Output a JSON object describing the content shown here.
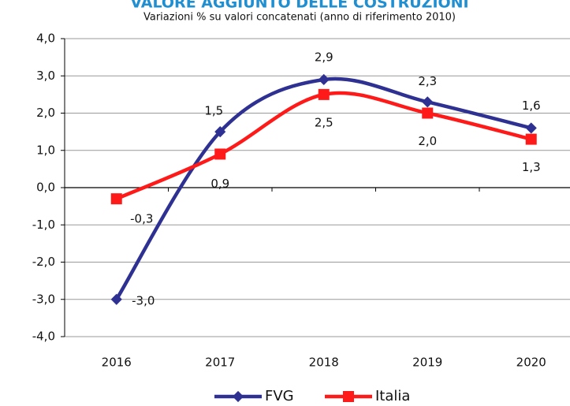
{
  "chart_data": {
    "type": "line",
    "title": "VALORE AGGIUNTO DELLE COSTRUZIONI",
    "subtitle": "Variazioni % su valori concatenati (anno di riferimento 2010)",
    "categories": [
      "2016",
      "2017",
      "2018",
      "2019",
      "2020"
    ],
    "series": [
      {
        "name": "FVG",
        "color": "#2e3192",
        "values": [
          -3.0,
          1.5,
          2.9,
          2.3,
          1.6
        ],
        "value_labels": [
          "-3,0",
          "1,5",
          "2,9",
          "2,3",
          "1,6"
        ]
      },
      {
        "name": "Italia",
        "color": "#ff1a1a",
        "values": [
          -0.3,
          0.9,
          2.5,
          2.0,
          1.3
        ],
        "value_labels": [
          "-0,3",
          "0,9",
          "2,5",
          "2,0",
          "1,3"
        ]
      }
    ],
    "ylim": [
      -4,
      4
    ],
    "yticks": [
      {
        "value": -4,
        "label": "-4,0"
      },
      {
        "value": -3,
        "label": "-3,0"
      },
      {
        "value": -2,
        "label": "-2,0"
      },
      {
        "value": -1,
        "label": "-1,0"
      },
      {
        "value": 0,
        "label": "0,0"
      },
      {
        "value": 1,
        "label": "1,0"
      },
      {
        "value": 2,
        "label": "2,0"
      },
      {
        "value": 3,
        "label": "3,0"
      },
      {
        "value": 4,
        "label": "4,0"
      }
    ],
    "grid": true,
    "legend": "bottom"
  }
}
